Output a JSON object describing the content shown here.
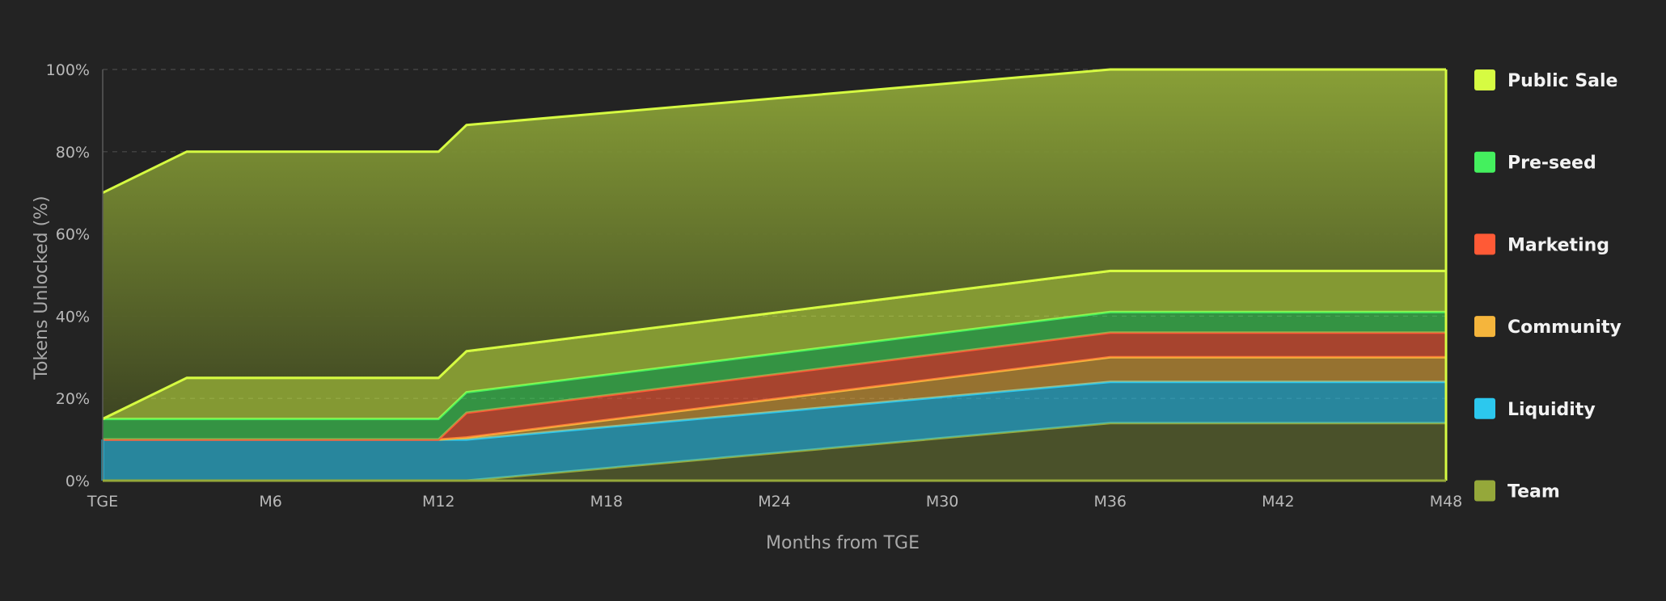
{
  "chart_data": {
    "type": "area",
    "stacked": true,
    "xlabel": "Months from TGE",
    "ylabel": "Tokens Unlocked (%)",
    "xlim": [
      0,
      48
    ],
    "ylim": [
      0,
      100
    ],
    "x_ticks": [
      {
        "value": 0,
        "label": "TGE"
      },
      {
        "value": 6,
        "label": "M6"
      },
      {
        "value": 12,
        "label": "M12"
      },
      {
        "value": 18,
        "label": "M18"
      },
      {
        "value": 24,
        "label": "M24"
      },
      {
        "value": 30,
        "label": "M30"
      },
      {
        "value": 36,
        "label": "M36"
      },
      {
        "value": 42,
        "label": "M42"
      },
      {
        "value": 48,
        "label": "M48"
      }
    ],
    "y_ticks": [
      {
        "value": 0,
        "label": "0%"
      },
      {
        "value": 20,
        "label": "20%"
      },
      {
        "value": 40,
        "label": "40%"
      },
      {
        "value": 60,
        "label": "60%"
      },
      {
        "value": 80,
        "label": "80%"
      },
      {
        "value": 100,
        "label": "100%"
      }
    ],
    "grid": true,
    "legend_position": "right",
    "x": [
      0,
      3,
      12,
      13,
      36,
      48
    ],
    "series": [
      {
        "name": "Team",
        "color": "#95a83a",
        "values": [
          0,
          0,
          0,
          0,
          14,
          14
        ]
      },
      {
        "name": "Liquidity",
        "color": "#2cc8ee",
        "values": [
          10,
          10,
          10,
          10,
          10,
          10
        ]
      },
      {
        "name": "Community",
        "color": "#f5b53c",
        "values": [
          0,
          0,
          0,
          0.5,
          6,
          6
        ]
      },
      {
        "name": "Marketing",
        "color": "#ff5a36",
        "values": [
          0,
          0,
          0,
          6,
          6,
          6
        ]
      },
      {
        "name": "Pre-seed",
        "color": "#44f05e",
        "values": [
          5,
          5,
          5,
          5,
          5,
          5
        ]
      },
      {
        "name": "Public Sale",
        "color": "#d6fb42",
        "values": [
          0,
          10,
          10,
          10,
          10,
          10
        ]
      }
    ],
    "top_band": {
      "name": "Team",
      "color": "#95a83a",
      "values": [
        70,
        80,
        80,
        86.5,
        100,
        100
      ]
    }
  }
}
